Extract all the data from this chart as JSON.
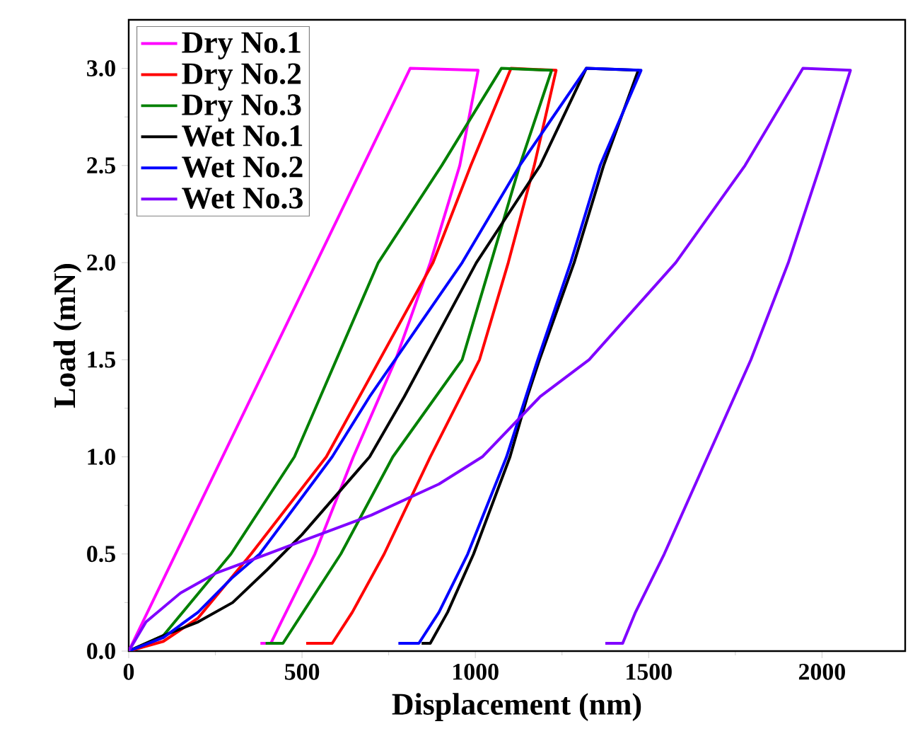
{
  "chart_data": {
    "type": "line",
    "xlabel": "Displacement (nm)",
    "ylabel": "Load (mN)",
    "xlim": [
      0,
      2240
    ],
    "ylim": [
      0,
      3.25
    ],
    "xticks": [
      0,
      500,
      1000,
      1500,
      2000
    ],
    "yticks": [
      {
        "value": 0,
        "label": "0.0"
      },
      {
        "value": 0.5,
        "label": "0.5"
      },
      {
        "value": 1,
        "label": "1.0"
      },
      {
        "value": 1.5,
        "label": "1.5"
      },
      {
        "value": 2,
        "label": "2.0"
      },
      {
        "value": 2.5,
        "label": "2.5"
      },
      {
        "value": 3,
        "label": "3.0"
      }
    ],
    "legend": "top left",
    "grid": false,
    "marker": "none",
    "line_style": "solid",
    "series": [
      {
        "name": "Dry No.1",
        "color": "#ff00ff",
        "x": [
          0,
          812,
          1008,
          955,
          870,
          770,
          648,
          537,
          440,
          410,
          380
        ],
        "values": [
          0,
          3.0,
          2.99,
          2.5,
          2.0,
          1.5,
          1.0,
          0.5,
          0.15,
          0.04,
          0.04
        ]
      },
      {
        "name": "Dry No.2",
        "color": "#ff0000",
        "x": [
          0,
          100,
          200,
          353,
          570,
          878,
          987,
          1103,
          1233,
          1170,
          1095,
          1012,
          870,
          737,
          645,
          587,
          512
        ],
        "values": [
          0,
          0.05,
          0.17,
          0.5,
          1.0,
          2.0,
          2.5,
          3.0,
          2.99,
          2.5,
          2.0,
          1.5,
          1.0,
          0.5,
          0.2,
          0.04,
          0.04
        ]
      },
      {
        "name": "Dry No.3",
        "color": "#008000",
        "x": [
          0,
          100,
          295,
          478,
          553,
          720,
          903,
          1075,
          1220,
          1128,
          1045,
          962,
          762,
          612,
          503,
          445,
          395
        ],
        "values": [
          0,
          0.08,
          0.5,
          1.0,
          1.31,
          2.0,
          2.5,
          3.0,
          2.99,
          2.5,
          2.0,
          1.5,
          1.0,
          0.5,
          0.2,
          0.04,
          0.04
        ]
      },
      {
        "name": "Wet No.1",
        "color": "#000000",
        "x": [
          0,
          100,
          200,
          300,
          400,
          500,
          695,
          795,
          1003,
          1187,
          1320,
          1470,
          1370,
          1285,
          1185,
          1150,
          1100,
          995,
          920,
          870,
          845
        ],
        "values": [
          0,
          0.08,
          0.15,
          0.25,
          0.42,
          0.6,
          1.0,
          1.31,
          2.0,
          2.5,
          3.0,
          2.99,
          2.5,
          2.0,
          1.5,
          1.31,
          1.0,
          0.5,
          0.2,
          0.04,
          0.04
        ]
      },
      {
        "name": "Wet No.2",
        "color": "#0000ff",
        "x": [
          0,
          100,
          200,
          300,
          378,
          587,
          695,
          962,
          1128,
          1320,
          1478,
          1360,
          1275,
          1180,
          1090,
          978,
          895,
          837,
          778
        ],
        "values": [
          0,
          0.07,
          0.2,
          0.38,
          0.5,
          1.0,
          1.31,
          2.0,
          2.5,
          3.0,
          2.99,
          2.5,
          2.0,
          1.5,
          1.0,
          0.5,
          0.2,
          0.04,
          0.04
        ]
      },
      {
        "name": "Wet No.3",
        "color": "#8000ff",
        "x": [
          0,
          50,
          150,
          250,
          400,
          550,
          700,
          895,
          1020,
          1187,
          1328,
          1578,
          1778,
          1945,
          2082,
          1995,
          1903,
          1795,
          1670,
          1545,
          1462,
          1425,
          1375
        ],
        "values": [
          0,
          0.15,
          0.3,
          0.4,
          0.5,
          0.6,
          0.7,
          0.86,
          1.0,
          1.31,
          1.5,
          2.0,
          2.5,
          3.0,
          2.99,
          2.5,
          2.0,
          1.5,
          1.0,
          0.5,
          0.2,
          0.04,
          0.04
        ]
      }
    ]
  }
}
